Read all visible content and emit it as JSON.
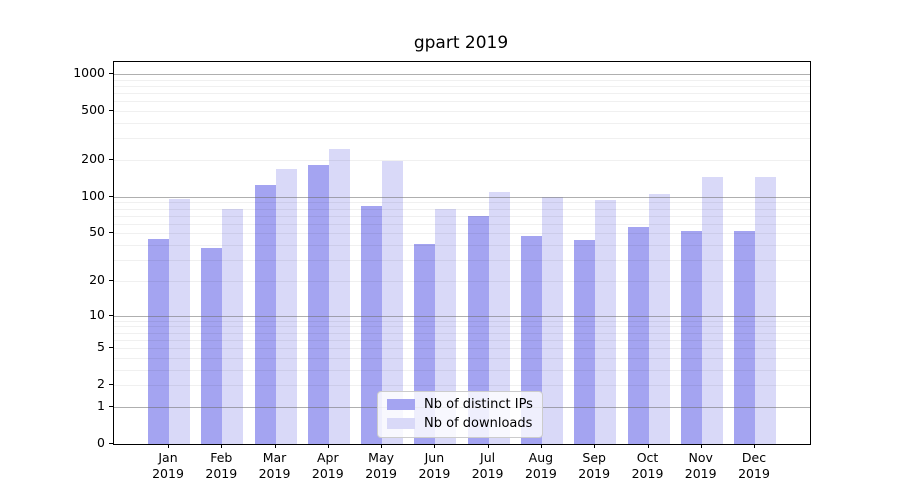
{
  "title": "gpart 2019",
  "colors": {
    "distinct_ips": "#a4a4f1",
    "downloads": "#d9d9f8",
    "axis": "#000000",
    "grid_major": "#8c8c8c",
    "grid_minor": "#e7e7e7",
    "legend_border": "#cccccc"
  },
  "legend": {
    "items": [
      {
        "label": "Nb of distinct IPs",
        "color_key": "distinct_ips"
      },
      {
        "label": "Nb of downloads",
        "color_key": "downloads"
      }
    ],
    "position": "lower center"
  },
  "chart_data": {
    "type": "bar",
    "title": "gpart 2019",
    "categories": [
      "Jan 2019",
      "Feb 2019",
      "Mar 2019",
      "Apr 2019",
      "May 2019",
      "Jun 2019",
      "Jul 2019",
      "Aug 2019",
      "Sep 2019",
      "Oct 2019",
      "Nov 2019",
      "Dec 2019"
    ],
    "series": [
      {
        "name": "Nb of distinct IPs",
        "values": [
          45,
          38,
          125,
          183,
          84,
          41,
          69,
          48,
          44,
          57,
          52,
          52
        ]
      },
      {
        "name": "Nb of downloads",
        "values": [
          96,
          80,
          170,
          245,
          195,
          79,
          109,
          100,
          94,
          105,
          145,
          146
        ]
      }
    ],
    "xlabel": "",
    "ylabel": "",
    "yscale": "log1p",
    "ylim": [
      0,
      1250
    ],
    "yticks": [
      1000,
      500,
      200,
      100,
      50,
      20,
      10,
      5,
      2,
      1,
      0
    ],
    "grid": true,
    "grid_major_at": [
      1,
      10,
      100,
      1000
    ],
    "grid_minor_at": [
      2,
      3,
      4,
      5,
      6,
      7,
      8,
      9,
      20,
      30,
      40,
      50,
      60,
      70,
      80,
      90,
      200,
      300,
      400,
      500,
      600,
      700,
      800,
      900
    ],
    "legend_position": "lower center"
  }
}
